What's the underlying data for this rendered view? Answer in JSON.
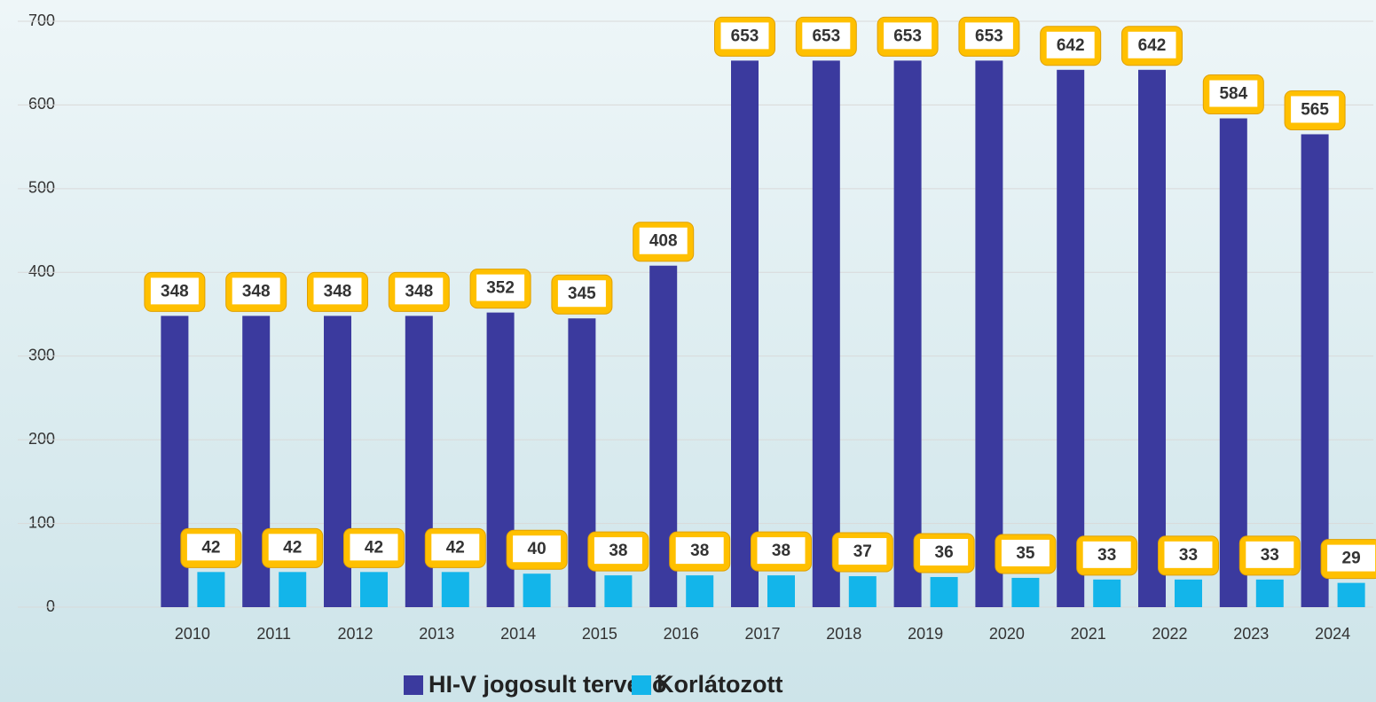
{
  "chart_data": {
    "type": "bar",
    "categories": [
      "2010",
      "2011",
      "2012",
      "2013",
      "2014",
      "2015",
      "2016",
      "2017",
      "2018",
      "2019",
      "2020",
      "2021",
      "2022",
      "2023",
      "2024"
    ],
    "series": [
      {
        "name": "HI-V jogosult tervező",
        "color": "#3b3a9e",
        "values": [
          348,
          348,
          348,
          348,
          352,
          345,
          408,
          653,
          653,
          653,
          653,
          642,
          642,
          584,
          565
        ]
      },
      {
        "name": "Korlátozott",
        "color": "#13b5ea",
        "values": [
          42,
          42,
          42,
          42,
          40,
          38,
          38,
          38,
          37,
          36,
          35,
          33,
          33,
          33,
          29
        ]
      }
    ],
    "ylim": [
      0,
      700
    ],
    "yticks": [
      0,
      100,
      200,
      300,
      400,
      500,
      600,
      700
    ],
    "grid": true,
    "legend": "bottom"
  }
}
